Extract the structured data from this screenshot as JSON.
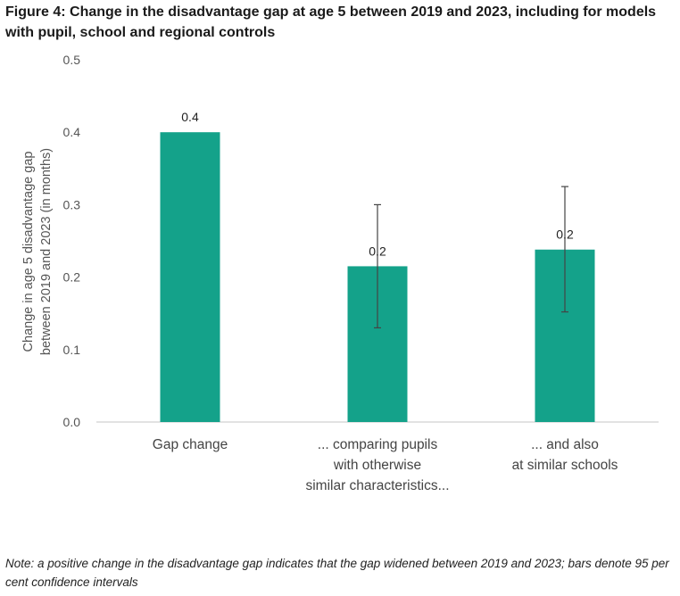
{
  "figure": {
    "title": "Figure 4: Change in the disadvantage gap at age 5 between 2019 and 2023, including for models with pupil, school and regional controls",
    "note": "Note: a positive change in the disadvantage gap indicates that the gap widened between 2019 and 2023; bars denote 95 per cent confidence intervals"
  },
  "colors": {
    "bar": "#14a28a",
    "error_bar": "#444444",
    "axis": "#d9d9d9"
  },
  "chart_data": {
    "type": "bar",
    "title": "Figure 4: Change in the disadvantage gap at age 5 between 2019 and 2023, including for models with pupil, school and regional controls",
    "categories": [
      [
        "Gap change"
      ],
      [
        "... comparing pupils",
        "with otherwise",
        "similar characteristics..."
      ],
      [
        "... and also",
        "at similar schools"
      ]
    ],
    "values": [
      0.4,
      0.215,
      0.238
    ],
    "data_labels": [
      "0.4",
      "0.2",
      "0.2"
    ],
    "error_bars": [
      null,
      [
        0.13,
        0.3
      ],
      [
        0.152,
        0.325
      ]
    ],
    "ylabel": [
      "Change in age 5 disadvantage gap",
      "between 2019 and 2023 (in months)"
    ],
    "xlabel": "",
    "ylim": [
      0,
      0.5
    ],
    "yticks": [
      "0.0",
      "0.1",
      "0.2",
      "0.3",
      "0.4",
      "0.5"
    ],
    "grid": false,
    "legend": "none"
  }
}
